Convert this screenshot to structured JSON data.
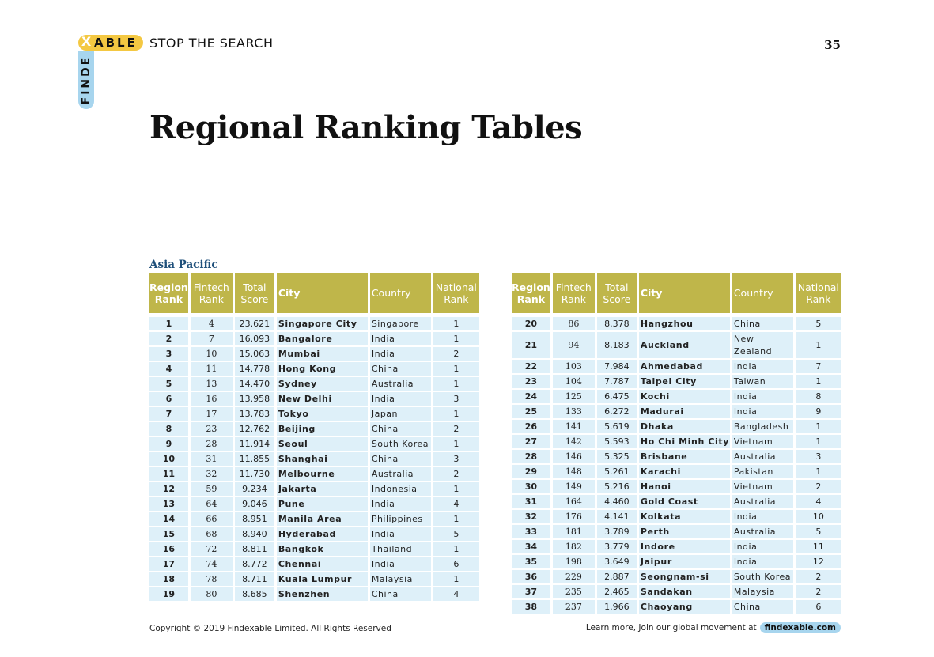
{
  "header": {
    "logo_x": "X",
    "logo_able": "ABLE",
    "logo_finde": "FINDE",
    "tagline": "STOP THE SEARCH",
    "page_number": "35"
  },
  "page_title": "Regional Ranking Tables",
  "region_label": "Asia Pacific",
  "columns": {
    "region_rank": "Region Rank",
    "fintech_rank": "Fintech Rank",
    "total_score": "Total Score",
    "city": "City",
    "country": "Country",
    "national_rank": "National Rank"
  },
  "rows_left": [
    {
      "region_rank": "1",
      "fintech_rank": "4",
      "total_score": "23.621",
      "city": "Singapore City",
      "country": "Singapore",
      "national_rank": "1"
    },
    {
      "region_rank": "2",
      "fintech_rank": "7",
      "total_score": "16.093",
      "city": "Bangalore",
      "country": "India",
      "national_rank": "1"
    },
    {
      "region_rank": "3",
      "fintech_rank": "10",
      "total_score": "15.063",
      "city": "Mumbai",
      "country": "India",
      "national_rank": "2"
    },
    {
      "region_rank": "4",
      "fintech_rank": "11",
      "total_score": "14.778",
      "city": "Hong Kong",
      "country": "China",
      "national_rank": "1"
    },
    {
      "region_rank": "5",
      "fintech_rank": "13",
      "total_score": "14.470",
      "city": "Sydney",
      "country": "Australia",
      "national_rank": "1"
    },
    {
      "region_rank": "6",
      "fintech_rank": "16",
      "total_score": "13.958",
      "city": "New Delhi",
      "country": "India",
      "national_rank": "3"
    },
    {
      "region_rank": "7",
      "fintech_rank": "17",
      "total_score": "13.783",
      "city": "Tokyo",
      "country": "Japan",
      "national_rank": "1"
    },
    {
      "region_rank": "8",
      "fintech_rank": "23",
      "total_score": "12.762",
      "city": "Beijing",
      "country": "China",
      "national_rank": "2"
    },
    {
      "region_rank": "9",
      "fintech_rank": "28",
      "total_score": "11.914",
      "city": "Seoul",
      "country": "South Korea",
      "national_rank": "1"
    },
    {
      "region_rank": "10",
      "fintech_rank": "31",
      "total_score": "11.855",
      "city": "Shanghai",
      "country": "China",
      "national_rank": "3"
    },
    {
      "region_rank": "11",
      "fintech_rank": "32",
      "total_score": "11.730",
      "city": "Melbourne",
      "country": "Australia",
      "national_rank": "2"
    },
    {
      "region_rank": "12",
      "fintech_rank": "59",
      "total_score": "9.234",
      "city": "Jakarta",
      "country": "Indonesia",
      "national_rank": "1"
    },
    {
      "region_rank": "13",
      "fintech_rank": "64",
      "total_score": "9.046",
      "city": "Pune",
      "country": "India",
      "national_rank": "4"
    },
    {
      "region_rank": "14",
      "fintech_rank": "66",
      "total_score": "8.951",
      "city": "Manila Area",
      "country": "Philippines",
      "national_rank": "1"
    },
    {
      "region_rank": "15",
      "fintech_rank": "68",
      "total_score": "8.940",
      "city": "Hyderabad",
      "country": "India",
      "national_rank": "5"
    },
    {
      "region_rank": "16",
      "fintech_rank": "72",
      "total_score": "8.811",
      "city": "Bangkok",
      "country": "Thailand",
      "national_rank": "1"
    },
    {
      "region_rank": "17",
      "fintech_rank": "74",
      "total_score": "8.772",
      "city": "Chennai",
      "country": "India",
      "national_rank": "6"
    },
    {
      "region_rank": "18",
      "fintech_rank": "78",
      "total_score": "8.711",
      "city": "Kuala Lumpur",
      "country": "Malaysia",
      "national_rank": "1"
    },
    {
      "region_rank": "19",
      "fintech_rank": "80",
      "total_score": "8.685",
      "city": "Shenzhen",
      "country": "China",
      "national_rank": "4"
    }
  ],
  "rows_right": [
    {
      "region_rank": "20",
      "fintech_rank": "86",
      "total_score": "8.378",
      "city": "Hangzhou",
      "country": "China",
      "national_rank": "5"
    },
    {
      "region_rank": "21",
      "fintech_rank": "94",
      "total_score": "8.183",
      "city": "Auckland",
      "country": "New Zealand",
      "national_rank": "1"
    },
    {
      "region_rank": "22",
      "fintech_rank": "103",
      "total_score": "7.984",
      "city": "Ahmedabad",
      "country": "India",
      "national_rank": "7"
    },
    {
      "region_rank": "23",
      "fintech_rank": "104",
      "total_score": "7.787",
      "city": "Taipei City",
      "country": "Taiwan",
      "national_rank": "1"
    },
    {
      "region_rank": "24",
      "fintech_rank": "125",
      "total_score": "6.475",
      "city": "Kochi",
      "country": "India",
      "national_rank": "8"
    },
    {
      "region_rank": "25",
      "fintech_rank": "133",
      "total_score": "6.272",
      "city": "Madurai",
      "country": "India",
      "national_rank": "9"
    },
    {
      "region_rank": "26",
      "fintech_rank": "141",
      "total_score": "5.619",
      "city": "Dhaka",
      "country": "Bangladesh",
      "national_rank": "1"
    },
    {
      "region_rank": "27",
      "fintech_rank": "142",
      "total_score": "5.593",
      "city": "Ho Chi Minh City",
      "country": "Vietnam",
      "national_rank": "1"
    },
    {
      "region_rank": "28",
      "fintech_rank": "146",
      "total_score": "5.325",
      "city": "Brisbane",
      "country": "Australia",
      "national_rank": "3"
    },
    {
      "region_rank": "29",
      "fintech_rank": "148",
      "total_score": "5.261",
      "city": "Karachi",
      "country": "Pakistan",
      "national_rank": "1"
    },
    {
      "region_rank": "30",
      "fintech_rank": "149",
      "total_score": "5.216",
      "city": "Hanoi",
      "country": "Vietnam",
      "national_rank": "2"
    },
    {
      "region_rank": "31",
      "fintech_rank": "164",
      "total_score": "4.460",
      "city": "Gold Coast",
      "country": "Australia",
      "national_rank": "4"
    },
    {
      "region_rank": "32",
      "fintech_rank": "176",
      "total_score": "4.141",
      "city": "Kolkata",
      "country": "India",
      "national_rank": "10"
    },
    {
      "region_rank": "33",
      "fintech_rank": "181",
      "total_score": "3.789",
      "city": "Perth",
      "country": "Australia",
      "national_rank": "5"
    },
    {
      "region_rank": "34",
      "fintech_rank": "182",
      "total_score": "3.779",
      "city": "Indore",
      "country": "India",
      "national_rank": "11"
    },
    {
      "region_rank": "35",
      "fintech_rank": "198",
      "total_score": "3.649",
      "city": "Jaipur",
      "country": "India",
      "national_rank": "12"
    },
    {
      "region_rank": "36",
      "fintech_rank": "229",
      "total_score": "2.887",
      "city": "Seongnam-si",
      "country": "South Korea",
      "national_rank": "2"
    },
    {
      "region_rank": "37",
      "fintech_rank": "235",
      "total_score": "2.465",
      "city": "Sandakan",
      "country": "Malaysia",
      "national_rank": "2"
    },
    {
      "region_rank": "38",
      "fintech_rank": "237",
      "total_score": "1.966",
      "city": "Chaoyang",
      "country": "China",
      "national_rank": "6"
    }
  ],
  "footer": {
    "copyright": "Copyright © 2019 Findexable Limited. All Rights Reserved",
    "learn_more": "Learn more, Join our global movement at",
    "link_text": "findexable.com"
  },
  "colors": {
    "header_bg": "#bfb64a",
    "row_bg": "#def0f9",
    "logo_yellow": "#f4c842",
    "logo_blue": "#a7d5ee",
    "region_label": "#1e4f7a"
  }
}
